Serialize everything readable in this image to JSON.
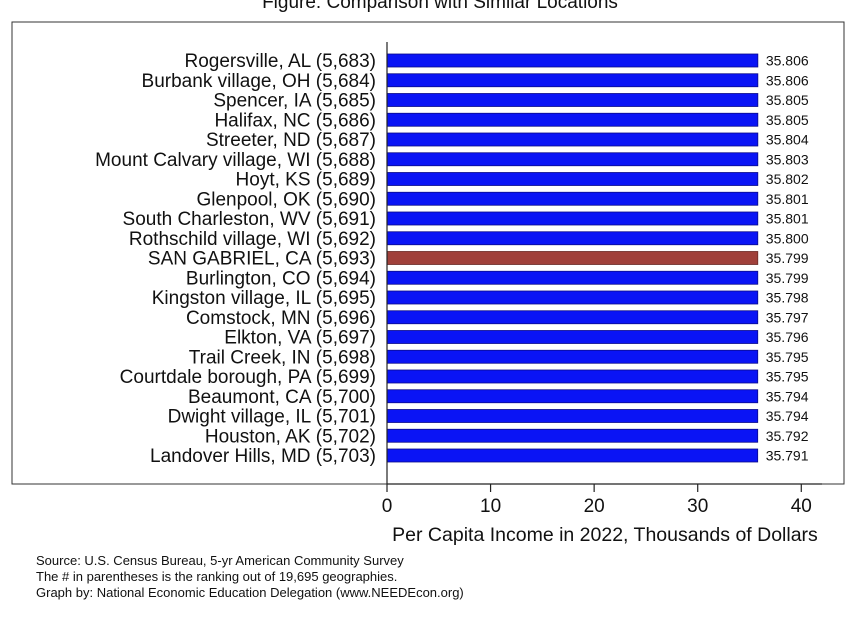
{
  "chart_data": {
    "type": "bar",
    "orientation": "horizontal",
    "title": "Figure: Comparison with Similar Locations",
    "xlabel": "Per Capita Income in 2022, Thousands of Dollars",
    "ylabel": "",
    "xlim": [
      0,
      42
    ],
    "xticks": [
      "0",
      "10",
      "20",
      "30",
      "40"
    ],
    "xtick_values": [
      0,
      10,
      20,
      30,
      40
    ],
    "grid": false,
    "colors": {
      "default": "#0a14f5",
      "highlight": "#a0403a",
      "bar_border": "#0a0a8a",
      "plot_bg": "#ffffff",
      "outer_bg": "#ffffff"
    },
    "categories": [
      "Rogersville, AL (5,683)",
      "Burbank village, OH (5,684)",
      "Spencer, IA (5,685)",
      "Halifax, NC (5,686)",
      "Streeter, ND (5,687)",
      "Mount Calvary village, WI (5,688)",
      "Hoyt, KS (5,689)",
      "Glenpool, OK (5,690)",
      "South Charleston, WV (5,691)",
      "Rothschild village, WI (5,692)",
      "SAN GABRIEL, CA (5,693)",
      "Burlington, CO (5,694)",
      "Kingston village, IL (5,695)",
      "Comstock, MN (5,696)",
      "Elkton, VA (5,697)",
      "Trail Creek, IN (5,698)",
      "Courtdale borough, PA (5,699)",
      "Beaumont, CA (5,700)",
      "Dwight village, IL (5,701)",
      "Houston, AK (5,702)",
      "Landover Hills, MD (5,703)"
    ],
    "values": [
      35.806,
      35.806,
      35.805,
      35.805,
      35.804,
      35.803,
      35.802,
      35.801,
      35.801,
      35.8,
      35.799,
      35.799,
      35.798,
      35.797,
      35.796,
      35.795,
      35.795,
      35.794,
      35.794,
      35.792,
      35.791
    ],
    "value_labels": [
      "35.806",
      "35.806",
      "35.805",
      "35.805",
      "35.804",
      "35.803",
      "35.802",
      "35.801",
      "35.801",
      "35.800",
      "35.799",
      "35.799",
      "35.798",
      "35.797",
      "35.796",
      "35.795",
      "35.795",
      "35.794",
      "35.794",
      "35.792",
      "35.791"
    ],
    "highlight_index": 10
  },
  "footer": {
    "source": "Source: U.S. Census Bureau, 5-yr American Community Survey",
    "note": "The # in parentheses is the ranking out of 19,695 geographies.",
    "credit": "Graph by: National Economic Education Delegation (www.NEEDEcon.org)"
  }
}
